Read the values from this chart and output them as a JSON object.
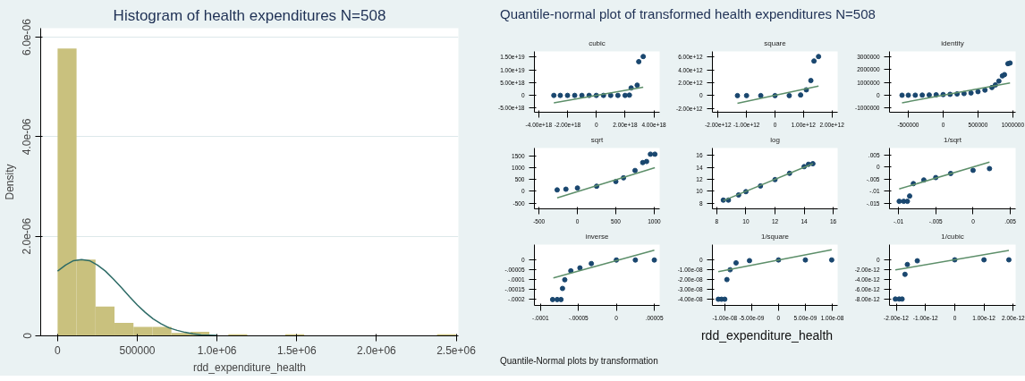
{
  "chart_data": [
    {
      "type": "histogram",
      "title": "Histogram of health expenditures N=508",
      "xlabel": "rdd_expenditure_health",
      "ylabel": "Density",
      "color": "#c9c17e",
      "bins": [
        0,
        119000,
        238000,
        357000,
        476000,
        595000,
        714000,
        833000,
        952000,
        1071000,
        1190000,
        1309000,
        1428000,
        1547000,
        1666000,
        1785000,
        1904000,
        2023000,
        2142000,
        2261000,
        2380000,
        2499000
      ],
      "values": [
        5.77e-06,
        1.53e-06,
        5.9e-07,
        2.6e-07,
        1.8e-07,
        1.8e-07,
        6e-08,
        8e-08,
        1e-08,
        3e-08,
        0,
        0,
        3e-08,
        1e-08,
        0,
        0,
        0,
        0,
        0,
        0,
        3e-08
      ],
      "series": [
        {
          "type": "line",
          "color": "#2d6b66",
          "x": [
            0,
            50000,
            100000,
            150000,
            200000,
            250000,
            300000,
            350000,
            400000,
            450000,
            500000,
            550000,
            600000,
            650000,
            700000,
            750000,
            800000,
            850000,
            900000,
            1000000
          ],
          "values": [
            1.3e-06,
            1.42e-06,
            1.51e-06,
            1.53e-06,
            1.51e-06,
            1.42e-06,
            1.3e-06,
            1.14e-06,
            9.7e-07,
            7.9e-07,
            6.2e-07,
            4.7e-07,
            3.4e-07,
            2.4e-07,
            1.6e-07,
            1.1e-07,
            7e-08,
            4e-08,
            2e-08,
            1e-08
          ]
        }
      ],
      "xlim": [
        -106000,
        2514000
      ],
      "ylim": [
        0,
        6.18e-06
      ],
      "xticks": [
        0,
        500000,
        {
          "value": 1000000,
          "label": "1.0e+06"
        },
        {
          "value": 1500000,
          "label": "1.5e+06"
        },
        {
          "value": 2000000,
          "label": "2.0e+06"
        },
        {
          "value": 2500000,
          "label": "2.5e+06"
        }
      ],
      "yticks": [
        0,
        {
          "value": 2e-06,
          "label": "2.0e-06"
        },
        {
          "value": 4e-06,
          "label": "4.0e-06"
        },
        {
          "value": 6e-06,
          "label": "6.0e-06"
        }
      ],
      "grid": "y"
    },
    {
      "type": "other",
      "title": "Quantile-normal plot of transformed health expenditures N=508",
      "xlabel": "rdd_expenditure_health",
      "annotations": [
        "Quantile-Normal plots by transformation"
      ]
    },
    {
      "type": "scatter",
      "title": "cubic",
      "marker": "circle",
      "series": [
        {
          "color": "#1a476f",
          "x": [
            -2.95e+18,
            -2.5e+18,
            -2e+18,
            -1.5e+18,
            -1e+18,
            -5e+17,
            0,
            5e+17,
            1e+18,
            1.5e+18,
            2e+18,
            2.3e+18,
            2.42e+18,
            2.84e+18,
            2.95e+18,
            3.26e+18
          ],
          "values": [
            0,
            0,
            0,
            0,
            0,
            0,
            0,
            0,
            0,
            0,
            0,
            1e+17,
            2.9e+18,
            4e+18,
            1.32e+19,
            1.52e+19
          ]
        },
        {
          "type": "line",
          "color": "#5d8f6a",
          "marker": "none",
          "x": [
            -2.95e+18,
            3.26e+18
          ],
          "values": [
            -2.9e+18,
            3.2e+18
          ]
        }
      ],
      "xlim": [
        -4.3e+18,
        4.4e+18
      ],
      "ylim": [
        -6.6e+18,
        1.72e+19
      ],
      "xticks": [
        {
          "value": -4e+18,
          "label": "-4.00e+18"
        },
        {
          "value": -2e+18,
          "label": "-2.00e+18"
        },
        0,
        {
          "value": 2e+18,
          "label": "2.00e+18"
        },
        {
          "value": 4e+18,
          "label": "4.00e+18"
        }
      ],
      "yticks": [
        {
          "value": -5e+18,
          "label": "-5.00e+18"
        },
        0,
        {
          "value": 5e+18,
          "label": "5.00e+18"
        },
        {
          "value": 1e+19,
          "label": "1.00e+19"
        },
        {
          "value": 1.5e+19,
          "label": "1.50e+19"
        }
      ]
    },
    {
      "type": "scatter",
      "title": "square",
      "marker": "circle",
      "series": [
        {
          "color": "#1a476f",
          "x": [
            -1320000000000.0,
            -1000000000000.0,
            -500000000000.0,
            0,
            500000000000.0,
            900000000000.0,
            1100000000000.0,
            1260000000000.0,
            1370000000000.0,
            1530000000000.0
          ],
          "values": [
            0,
            0,
            0,
            0,
            0,
            100000000000.0,
            900000000000.0,
            2350000000000.0,
            5400000000000.0,
            6100000000000.0
          ]
        },
        {
          "type": "line",
          "color": "#5d8f6a",
          "marker": "none",
          "x": [
            -1320000000000.0,
            1530000000000.0
          ],
          "values": [
            -1200000000000.0,
            1500000000000.0
          ]
        }
      ],
      "xlim": [
        -2200000000000.0,
        2200000000000.0
      ],
      "ylim": [
        -2600000000000.0,
        6900000000000.0
      ],
      "xticks": [
        {
          "value": -2000000000000.0,
          "label": "-2.00e+12"
        },
        {
          "value": -1000000000000.0,
          "label": "-1.00e+12"
        },
        0,
        {
          "value": 1000000000000.0,
          "label": "1.00e+12"
        },
        {
          "value": 2000000000000.0,
          "label": "2.00e+12"
        }
      ],
      "yticks": [
        {
          "value": -2000000000000.0,
          "label": "-2.00e+12"
        },
        0,
        {
          "value": 2000000000000.0,
          "label": "2.00e+12"
        },
        {
          "value": 4000000000000.0,
          "label": "4.00e+12"
        },
        {
          "value": 6000000000000.0,
          "label": "6.00e+12"
        }
      ]
    },
    {
      "type": "scatter",
      "title": "identity",
      "marker": "circle",
      "series": [
        {
          "color": "#1a476f",
          "x": [
            -590000,
            -500000,
            -400000,
            -300000,
            -200000,
            -100000,
            0,
            100000,
            200000,
            300000,
            400000,
            500000,
            600000,
            700000,
            750000,
            800000,
            850000,
            880000,
            930000,
            960000
          ],
          "values": [
            0,
            2000,
            5000,
            10000,
            20000,
            35000,
            50000,
            70000,
            100000,
            130000,
            180000,
            280000,
            400000,
            600000,
            800000,
            1100000,
            1500000,
            1600000,
            2450000,
            2500000
          ]
        },
        {
          "type": "line",
          "color": "#5d8f6a",
          "marker": "none",
          "x": [
            -590000,
            960000
          ],
          "values": [
            -590000,
            960000
          ]
        }
      ],
      "xlim": [
        -770000,
        1040000
      ],
      "ylim": [
        -1320000,
        3400000
      ],
      "xticks": [
        -500000,
        0,
        500000,
        1000000
      ],
      "yticks": [
        -1000000,
        0,
        1000000,
        2000000,
        3000000
      ]
    },
    {
      "type": "scatter",
      "title": "sqrt",
      "marker": "circle",
      "series": [
        {
          "color": "#1a476f",
          "x": [
            -264,
            -150,
            0,
            250,
            500,
            600,
            750,
            850,
            900,
            950,
            1008
          ],
          "values": [
            60,
            90,
            140,
            215,
            415,
            570,
            880,
            1215,
            1260,
            1570,
            1570
          ]
        },
        {
          "type": "line",
          "color": "#5d8f6a",
          "marker": "none",
          "x": [
            -264,
            1008
          ],
          "values": [
            -277,
            1000
          ]
        }
      ],
      "xlim": [
        -560,
        1070
      ],
      "ylim": [
        -740,
        1830
      ],
      "xticks": [
        -500,
        0,
        500,
        1000
      ],
      "yticks": [
        -500,
        0,
        500,
        1000,
        1500
      ]
    },
    {
      "type": "scatter",
      "title": "log",
      "marker": "circle",
      "series": [
        {
          "color": "#1a476f",
          "x": [
            8.45,
            8.8,
            9.5,
            10,
            11,
            12,
            13,
            14,
            14.3,
            14.6
          ],
          "values": [
            8.55,
            8.55,
            9.4,
            9.95,
            10.9,
            11.95,
            13.0,
            14.1,
            14.5,
            14.6
          ]
        },
        {
          "type": "line",
          "color": "#5d8f6a",
          "marker": "none",
          "x": [
            8.45,
            14.6
          ],
          "values": [
            8.45,
            14.6
          ]
        }
      ],
      "xlim": [
        7.7,
        16.3
      ],
      "ylim": [
        7.1,
        17.2
      ],
      "xticks": [
        8,
        10,
        12,
        14,
        16
      ],
      "yticks": [
        8,
        10,
        12,
        14,
        16
      ]
    },
    {
      "type": "scatter",
      "title": "1/sqrt",
      "marker": "circle",
      "series": [
        {
          "color": "#1a476f",
          "x": [
            -0.0099,
            -0.0093,
            -0.0088,
            -0.0085,
            -0.008,
            -0.0066,
            -0.005,
            -0.003,
            0,
            0.0022
          ],
          "values": [
            -0.0141,
            -0.0141,
            -0.0141,
            -0.0119,
            -0.0068,
            -0.0053,
            -0.0043,
            -0.0026,
            -0.0013,
            -0.0006
          ]
        },
        {
          "type": "line",
          "color": "#5d8f6a",
          "marker": "none",
          "x": [
            -0.0099,
            0.0022
          ],
          "values": [
            -0.009,
            0.0021
          ]
        }
      ],
      "xlim": [
        -0.0112,
        0.0057
      ],
      "ylim": [
        -0.0172,
        0.0079
      ],
      "xticks": [
        {
          "value": -0.01,
          "label": "-.01"
        },
        {
          "value": -0.005,
          "label": "-.005"
        },
        0,
        {
          "value": 0.005,
          "label": ".005"
        }
      ],
      "yticks": [
        {
          "value": -0.015,
          "label": "-.015"
        },
        {
          "value": -0.01,
          "label": "-.01"
        },
        {
          "value": -0.005,
          "label": "-.005"
        },
        0,
        {
          "value": 0.005,
          "label": ".005"
        }
      ]
    },
    {
      "type": "scatter",
      "title": "inverse",
      "marker": "circle",
      "series": [
        {
          "color": "#1a476f",
          "x": [
            -8.4e-05,
            -7.8e-05,
            -7.3e-05,
            -7.1e-05,
            -6.8e-05,
            -6e-05,
            -4.8e-05,
            -3.3e-05,
            0,
            2.5e-05,
            5e-05
          ],
          "values": [
            -0.0002,
            -0.0002,
            -0.0002,
            -0.000144,
            -0.0001,
            -5.5e-05,
            -4e-05,
            -1.8e-05,
            0,
            0,
            0
          ]
        },
        {
          "type": "line",
          "color": "#5d8f6a",
          "marker": "none",
          "x": [
            -8.3e-05,
            5e-05
          ],
          "values": [
            -9.1e-05,
            5e-05
          ]
        }
      ],
      "xlim": [
        -0.000108,
        5.7e-05
      ],
      "ylim": [
        -0.00023,
        7.8e-05
      ],
      "xticks": [
        {
          "value": -0.0001,
          "label": "-.0001"
        },
        {
          "value": -5e-05,
          "label": "-.00005"
        },
        0,
        {
          "value": 5e-05,
          "label": ".00005"
        }
      ],
      "yticks": [
        {
          "value": -0.0002,
          "label": "-.0002"
        },
        {
          "value": -0.00015,
          "label": "-.00015"
        },
        {
          "value": -0.0001,
          "label": "-.0001"
        },
        {
          "value": -5e-05,
          "label": "-.00005"
        },
        0
      ]
    },
    {
      "type": "scatter",
      "title": "1/square",
      "marker": "circle",
      "series": [
        {
          "color": "#1a476f",
          "x": [
            -1.12e-08,
            -1.06e-08,
            -1e-08,
            -9.6e-09,
            -9e-09,
            -7.9e-09,
            -5.4e-09,
            0,
            5e-09,
            9.9e-09
          ],
          "values": [
            -4e-08,
            -4e-08,
            -4e-08,
            -2e-08,
            -1e-08,
            -3e-09,
            -7e-10,
            0,
            0,
            0
          ]
        },
        {
          "type": "line",
          "color": "#5d8f6a",
          "marker": "none",
          "x": [
            -1.12e-08,
            9.9e-09
          ],
          "values": [
            -1.2e-08,
            1.04e-08
          ]
        }
      ],
      "xlim": [
        -1.23e-08,
        1.1e-08
      ],
      "ylim": [
        -4.63e-08,
        1.56e-08
      ],
      "xticks": [
        {
          "value": -1e-08,
          "label": "-1.00e-08"
        },
        {
          "value": -5e-09,
          "label": "-5.00e-09"
        },
        0,
        {
          "value": 5e-09,
          "label": "5.00e-09"
        },
        {
          "value": 1e-08,
          "label": "1.00e-08"
        }
      ],
      "yticks": [
        {
          "value": -4e-08,
          "label": "-4.00e-08"
        },
        {
          "value": -3e-08,
          "label": "-3.00e-08"
        },
        {
          "value": -2e-08,
          "label": "-2.00e-08"
        },
        {
          "value": -1e-08,
          "label": "-1.00e-08"
        },
        0
      ]
    },
    {
      "type": "scatter",
      "title": "1/cubic",
      "marker": "circle",
      "series": [
        {
          "color": "#1a476f",
          "x": [
            -2.03e-12,
            -1.9e-12,
            -1.8e-12,
            -1.7e-12,
            -1.62e-12,
            -1.28e-12,
            0,
            1e-12,
            1.85e-12
          ],
          "values": [
            -8e-12,
            -8e-12,
            -8e-12,
            -2.96e-12,
            -9.6e-13,
            -2e-13,
            0,
            0,
            0
          ]
        },
        {
          "type": "line",
          "color": "#5d8f6a",
          "marker": "none",
          "x": [
            -2.03e-12,
            1.85e-12
          ],
          "values": [
            -2.07e-12,
            1.93e-12
          ]
        }
      ],
      "xlim": [
        -2.23e-12,
        2.08e-12
      ],
      "ylim": [
        -9.3e-12,
        3.1e-12
      ],
      "xticks": [
        {
          "value": -2e-12,
          "label": "-2.00e-12"
        },
        {
          "value": -1e-12,
          "label": "-1.00e-12"
        },
        0,
        {
          "value": 1e-12,
          "label": "1.00e-12"
        },
        {
          "value": 2e-12,
          "label": "2.00e-12"
        }
      ],
      "yticks": [
        {
          "value": -8e-12,
          "label": "-8.00e-12"
        },
        {
          "value": -6e-12,
          "label": "-6.00e-12"
        },
        {
          "value": -4e-12,
          "label": "-4.00e-12"
        },
        {
          "value": -2e-12,
          "label": "-2.00e-12"
        },
        0
      ]
    }
  ]
}
